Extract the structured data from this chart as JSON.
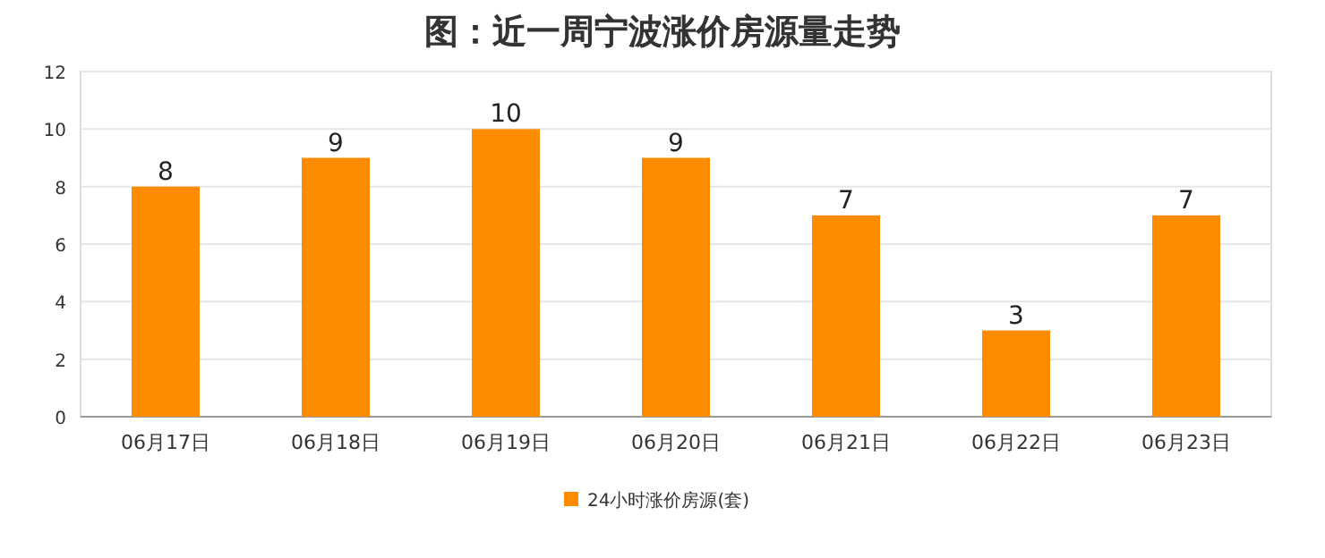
{
  "chart_data": {
    "type": "bar",
    "title": "图：近一周宁波涨价房源量走势",
    "categories": [
      "06月17日",
      "06月18日",
      "06月19日",
      "06月20日",
      "06月21日",
      "06月22日",
      "06月23日"
    ],
    "series": [
      {
        "name": "24小时涨价房源(套)",
        "color": "#ff8c00",
        "values": [
          8,
          9,
          10,
          9,
          7,
          3,
          7
        ]
      }
    ],
    "ylim": [
      0,
      12
    ],
    "yticks": [
      0,
      2,
      4,
      6,
      8,
      10,
      12
    ],
    "grid": "y",
    "legend": "bottom",
    "data_labels": true
  }
}
